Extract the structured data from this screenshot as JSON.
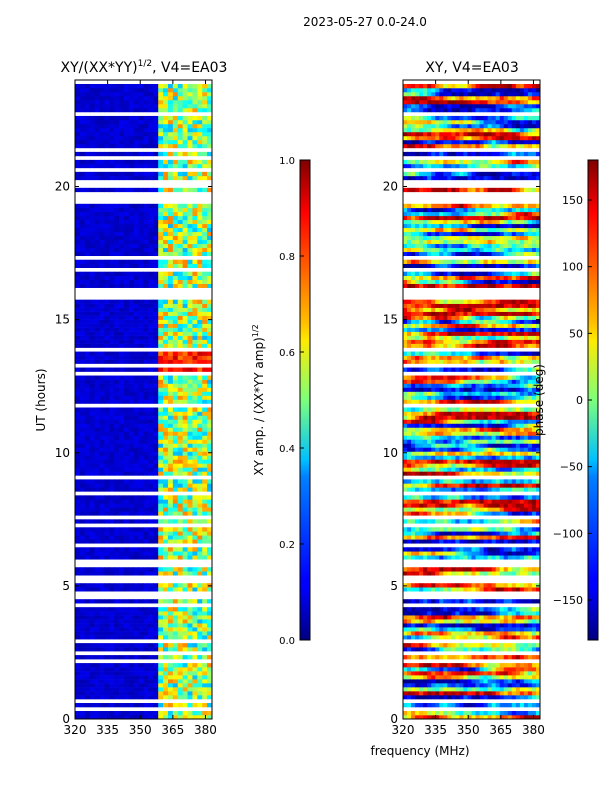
{
  "figure": {
    "suptitle": "2023-05-27 0.0-24.0"
  },
  "chart_data": [
    {
      "type": "heatmap",
      "title": "XY/(XX*YY)",
      "title_exponent": "1/2",
      "title_suffix": ", V4=EA03",
      "xlabel": "",
      "ylabel": "UT (hours)",
      "xlim": [
        320,
        383
      ],
      "ylim": [
        0,
        24
      ],
      "xticks": [
        320,
        335,
        350,
        365,
        380
      ],
      "yticks": [
        0,
        5,
        10,
        15,
        20
      ],
      "colorbar": {
        "label": "XY amp. / (XX*YY amp)",
        "label_exponent": "1/2",
        "range": [
          0.0,
          1.0
        ],
        "ticks": [
          "0.0",
          "0.2",
          "0.4",
          "0.6",
          "0.8",
          "1.0"
        ],
        "colormap": "jet"
      }
    },
    {
      "type": "heatmap",
      "title": "XY, V4=EA03",
      "xlabel": "frequency (MHz)",
      "ylabel": "",
      "xlim": [
        320,
        383
      ],
      "ylim": [
        0,
        24
      ],
      "xticks": [
        320,
        335,
        350,
        365,
        380
      ],
      "yticks": [
        0,
        5,
        10,
        15,
        20
      ],
      "colorbar": {
        "label": "phase (deg)",
        "range": [
          -180,
          180
        ],
        "ticks": [
          "150",
          "100",
          "50",
          "0",
          "−50",
          "−100",
          "−150"
        ],
        "tick_values": [
          150,
          100,
          50,
          0,
          -50,
          -100,
          -150
        ],
        "colormap": "jet"
      }
    }
  ],
  "colors": {
    "jet_low": "#00008f",
    "jet_high": "#800000",
    "axes": "#000000"
  }
}
